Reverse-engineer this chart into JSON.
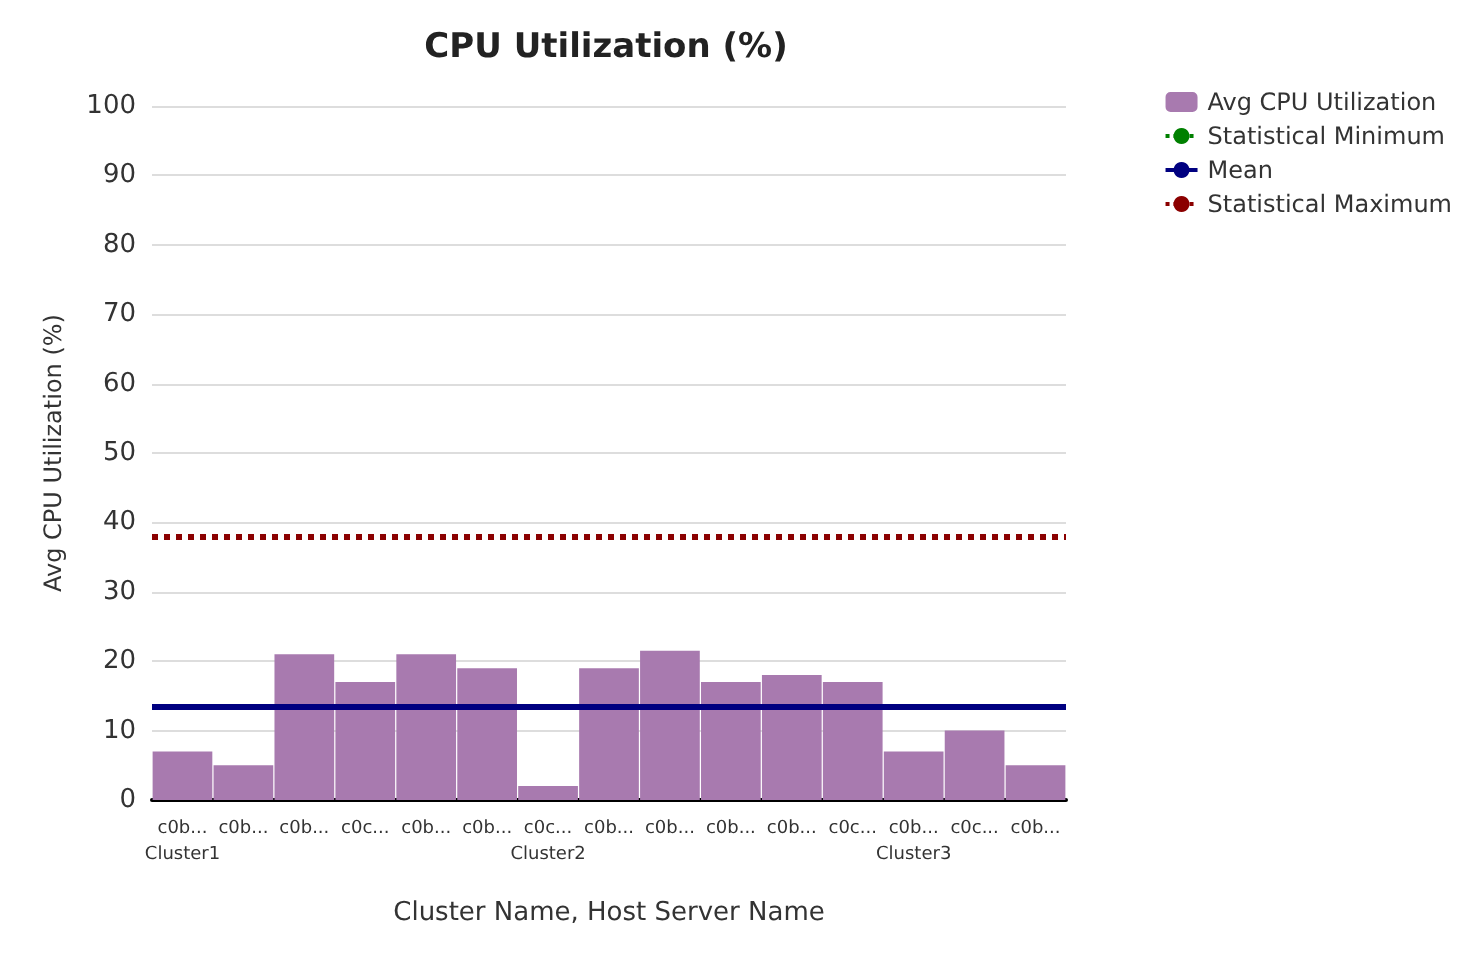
{
  "chart_data": {
    "type": "bar",
    "title": "CPU Utilization (%)",
    "xlabel": "Cluster Name, Host Server Name",
    "ylabel": "Avg CPU Utilization (%)",
    "categories": [
      "c0b...\nCluster1",
      "c0b...",
      "c0b...",
      "c0c...",
      "c0b...",
      "c0b...",
      "c0c...\nCluster2",
      "c0b...",
      "c0b...",
      "c0b...",
      "c0b...",
      "c0c...",
      "c0b...\nCluster3",
      "c0c...",
      "c0b..."
    ],
    "series": [
      {
        "name": "Avg CPU Utilization",
        "color": "#a87aaf",
        "values": [
          7,
          5,
          21,
          17,
          21,
          19,
          2,
          19,
          21.5,
          17,
          18,
          17,
          7,
          10,
          5
        ]
      },
      {
        "name": "Statistical Minimum",
        "type": "line",
        "color": "#008000",
        "line_style": "dotted",
        "values": [
          null,
          null,
          null,
          null,
          null,
          null,
          null,
          null,
          null,
          null,
          null,
          null,
          null,
          null,
          null
        ]
      }
    ],
    "ref_lines": [
      {
        "axis": "y",
        "value": 13.5,
        "label": "Mean",
        "color": "#000080",
        "line_style": "solid"
      },
      {
        "axis": "y",
        "value": 38,
        "label": "Statistical Maximum",
        "color": "#8b0000",
        "line_style": "dotted"
      }
    ],
    "ylim": [
      0,
      100
    ],
    "yticks": [
      0,
      10,
      20,
      30,
      40,
      50,
      60,
      70,
      80,
      90,
      100
    ],
    "grid": "y",
    "legend": "top right"
  }
}
